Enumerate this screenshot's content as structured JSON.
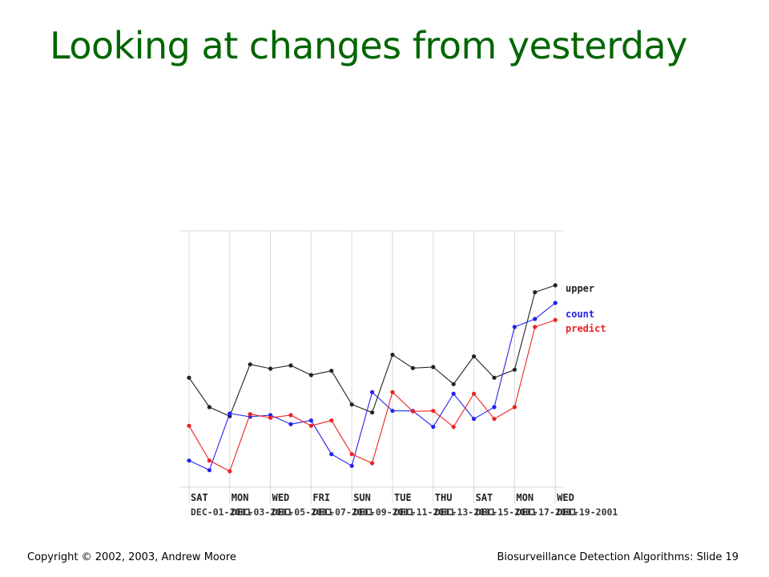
{
  "slide": {
    "title": "Looking at changes from yesterday",
    "footer_left": "Copyright © 2002, 2003, Andrew  Moore",
    "footer_right": "Biosurveillance Detection Algorithms: Slide 19"
  },
  "chart_data": {
    "type": "line",
    "title": "",
    "xlabel": "",
    "ylabel": "",
    "grid": true,
    "legend_placement": "right",
    "x_day_labels": [
      "SAT",
      "MON",
      "WED",
      "FRI",
      "SUN",
      "TUE",
      "THU",
      "SAT",
      "MON",
      "WED"
    ],
    "x_date_labels": [
      "DEC-01-2001",
      "DEC-03-2001",
      "DEC-05-2001",
      "DEC-07-2001",
      "DEC-09-2001",
      "DEC-11-2001",
      "DEC-13-2001",
      "DEC-15-2001",
      "DEC-17-2001",
      "DEC-19-2001"
    ],
    "x_index": [
      0,
      1,
      2,
      3,
      4,
      5,
      6,
      7,
      8,
      9,
      10,
      11,
      12,
      13,
      14,
      15,
      16,
      17,
      18
    ],
    "ylim": [
      0,
      48
    ],
    "series": [
      {
        "name": "upper",
        "color": "#222222",
        "values": [
          20.5,
          15.0,
          13.3,
          23.0,
          22.2,
          22.8,
          21.0,
          21.8,
          15.5,
          14.0,
          24.8,
          22.3,
          22.5,
          19.3,
          24.5,
          20.5,
          22.0,
          36.5,
          37.8
        ]
      },
      {
        "name": "count",
        "color": "#2222ee",
        "values": [
          5.0,
          3.2,
          13.8,
          13.2,
          13.5,
          11.8,
          12.5,
          6.2,
          4.0,
          17.8,
          14.3,
          14.3,
          11.3,
          17.5,
          12.8,
          15.0,
          30.0,
          31.5,
          34.5
        ]
      },
      {
        "name": "predict",
        "color": "#ee2222",
        "values": [
          11.5,
          5.0,
          3.0,
          13.7,
          13.0,
          13.5,
          11.5,
          12.5,
          6.2,
          4.5,
          17.8,
          14.2,
          14.3,
          11.3,
          17.5,
          12.8,
          15.0,
          30.0,
          31.3
        ]
      }
    ]
  }
}
